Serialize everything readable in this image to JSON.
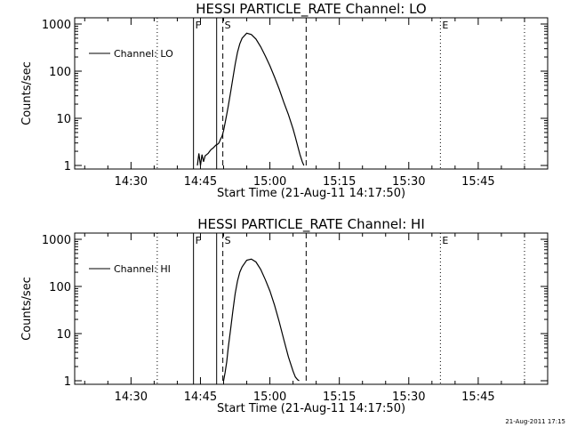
{
  "chart_data": [
    {
      "type": "line",
      "title": "HESSI PARTICLE_RATE Channel: LO",
      "xlabel": "Start Time (21-Aug-11 14:17:50)",
      "ylabel": "Counts/sec",
      "yscale": "log",
      "ylim": [
        1,
        1000
      ],
      "xlim": [
        "14:17:50",
        "16:00:00"
      ],
      "xtick_labels": [
        "14:30",
        "14:45",
        "15:00",
        "15:15",
        "15:30",
        "15:45"
      ],
      "ytick_labels": [
        "1",
        "10",
        "100",
        "1000"
      ],
      "legend": {
        "position": "top-left",
        "entries": [
          "Channel: LO"
        ]
      },
      "markers": [
        {
          "time": "14:35:40",
          "style": "dotted",
          "label": ""
        },
        {
          "time": "14:43:30",
          "style": "solid",
          "label": "F"
        },
        {
          "time": "14:48:30",
          "style": "solid",
          "label": ""
        },
        {
          "time": "14:49:50",
          "style": "dashed",
          "label": "S"
        },
        {
          "time": "15:07:50",
          "style": "dashed",
          "label": ""
        },
        {
          "time": "15:36:50",
          "style": "dotted",
          "label": "E"
        },
        {
          "time": "15:55:00",
          "style": "dotted",
          "label": ""
        }
      ],
      "series": [
        {
          "name": "Channel: LO",
          "x": [
            "14:44:20",
            "14:44:40",
            "14:45:00",
            "14:45:20",
            "14:45:40",
            "14:46:00",
            "14:46:20",
            "14:46:40",
            "14:47:00",
            "14:47:20",
            "14:47:40",
            "14:48:00",
            "14:48:20",
            "14:48:40",
            "14:49:00",
            "14:49:20",
            "14:49:40",
            "14:50:00",
            "14:50:20",
            "14:50:40",
            "14:51:00",
            "14:51:30",
            "14:52:00",
            "14:52:30",
            "14:53:00",
            "14:53:30",
            "14:54:00",
            "14:55:00",
            "14:56:00",
            "14:57:00",
            "14:58:00",
            "14:59:00",
            "15:00:00",
            "15:01:00",
            "15:02:00",
            "15:03:00",
            "15:04:00",
            "15:05:00",
            "15:05:30",
            "15:06:00",
            "15:06:30",
            "15:07:00",
            "15:07:20"
          ],
          "y": [
            1.0,
            1.8,
            1.0,
            1.7,
            1.2,
            1.6,
            1.7,
            1.8,
            2.0,
            2.2,
            2.3,
            2.5,
            2.7,
            2.8,
            3.0,
            3.6,
            4.2,
            5.5,
            8,
            12,
            18,
            35,
            70,
            140,
            250,
            380,
            500,
            640,
            600,
            480,
            330,
            210,
            130,
            75,
            42,
            22,
            12,
            6,
            4,
            2.6,
            1.7,
            1.2,
            1.0
          ]
        }
      ]
    },
    {
      "type": "line",
      "title": "HESSI PARTICLE_RATE Channel: HI",
      "xlabel": "Start Time (21-Aug-11 14:17:50)",
      "ylabel": "Counts/sec",
      "yscale": "log",
      "ylim": [
        1,
        1000
      ],
      "xlim": [
        "14:17:50",
        "16:00:00"
      ],
      "xtick_labels": [
        "14:30",
        "14:45",
        "15:00",
        "15:15",
        "15:30",
        "15:45"
      ],
      "ytick_labels": [
        "1",
        "10",
        "100",
        "1000"
      ],
      "legend": {
        "position": "top-left",
        "entries": [
          "Channel: HI"
        ]
      },
      "markers": [
        {
          "time": "14:35:40",
          "style": "dotted",
          "label": ""
        },
        {
          "time": "14:43:30",
          "style": "solid",
          "label": "F"
        },
        {
          "time": "14:48:30",
          "style": "solid",
          "label": ""
        },
        {
          "time": "14:49:50",
          "style": "dashed",
          "label": "S"
        },
        {
          "time": "15:07:50",
          "style": "dashed",
          "label": ""
        },
        {
          "time": "15:36:50",
          "style": "dotted",
          "label": "E"
        },
        {
          "time": "15:55:00",
          "style": "dotted",
          "label": ""
        }
      ],
      "series": [
        {
          "name": "Channel: HI",
          "x": [
            "14:50:00",
            "14:50:20",
            "14:50:40",
            "14:51:00",
            "14:51:30",
            "14:52:00",
            "14:52:30",
            "14:53:00",
            "14:53:30",
            "14:54:00",
            "14:55:00",
            "14:56:00",
            "14:57:00",
            "14:58:00",
            "14:59:00",
            "15:00:00",
            "15:01:00",
            "15:02:00",
            "15:03:00",
            "15:04:00",
            "15:05:00",
            "15:05:30",
            "15:06:00",
            "15:06:20"
          ],
          "y": [
            1.0,
            1.5,
            2.5,
            5,
            12,
            30,
            70,
            130,
            200,
            260,
            360,
            380,
            330,
            230,
            140,
            80,
            40,
            18,
            7.5,
            3.2,
            1.6,
            1.2,
            1.05,
            1.0
          ]
        }
      ]
    }
  ],
  "timestamp": "21-Aug-2011 17:15"
}
